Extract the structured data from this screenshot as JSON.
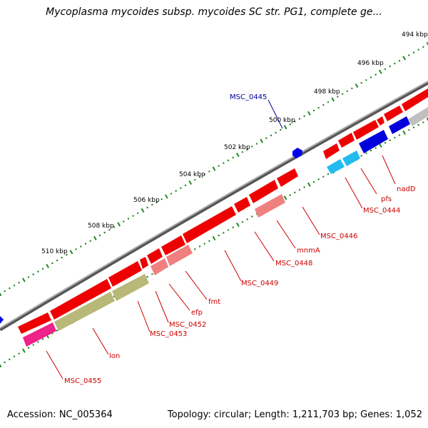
{
  "title": "Mycoplasma mycoides subsp. mycoides SC str. PG1, complete ge...",
  "footer": {
    "accession": "Accession: NC_005364",
    "summary": "Topology: circular; Length: 1,211,703 bp; Genes: 1,052"
  },
  "colors": {
    "backbone": "#888888",
    "cds_fwd": "#ff0000",
    "cds_rev": "#ff0000",
    "rna_blue": "#0000ee",
    "light_blue": "#33ccee",
    "pink": "#f08080",
    "olive": "#b8b878",
    "magenta": "#ee2288",
    "gray": "#bbbbbb",
    "tick": "#228822",
    "label_red": "#cc0000",
    "label_blue": "#000099"
  },
  "scale": {
    "unit": "kbp",
    "ticks": [
      {
        "value": 494,
        "label": "494 kbp"
      },
      {
        "value": 496,
        "label": "496 kbp"
      },
      {
        "value": 498,
        "label": "498 kbp"
      },
      {
        "value": 500,
        "label": "500 kbp"
      },
      {
        "value": 502,
        "label": "502 kbp"
      },
      {
        "value": 504,
        "label": "504 kbp"
      },
      {
        "value": 506,
        "label": "506 kbp"
      },
      {
        "value": 508,
        "label": "508 kbp"
      },
      {
        "value": 510,
        "label": "510 kbp"
      }
    ]
  },
  "gene_labels": [
    {
      "name": "MSC_0445",
      "color": "blue"
    },
    {
      "name": "nadD",
      "color": "red"
    },
    {
      "name": "pfs",
      "color": "red"
    },
    {
      "name": "MSC_0444",
      "color": "red"
    },
    {
      "name": "MSC_0446",
      "color": "red"
    },
    {
      "name": "mnmA",
      "color": "red"
    },
    {
      "name": "MSC_0448",
      "color": "red"
    },
    {
      "name": "MSC_0449",
      "color": "red"
    },
    {
      "name": "fmt",
      "color": "red"
    },
    {
      "name": "efp",
      "color": "red"
    },
    {
      "name": "MSC_0452",
      "color": "red"
    },
    {
      "name": "MSC_0453",
      "color": "red"
    },
    {
      "name": "lon",
      "color": "red"
    },
    {
      "name": "MSC_0455",
      "color": "red"
    }
  ]
}
